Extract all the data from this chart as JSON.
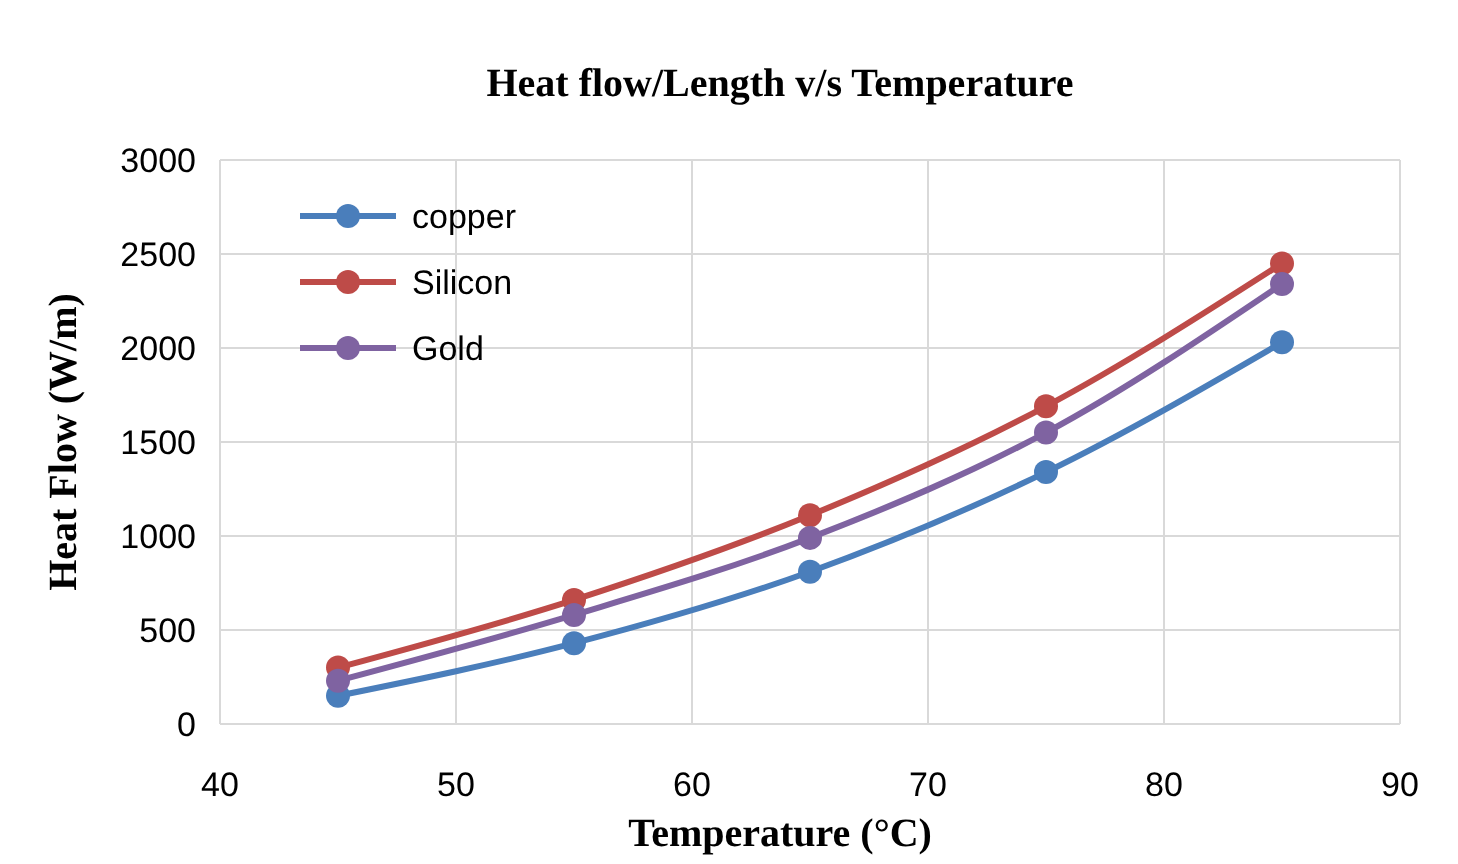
{
  "chart_data": {
    "type": "line",
    "title": "Heat flow/Length v/s Temperature",
    "xlabel": "Temperature (°C)",
    "ylabel": "Heat Flow (W/m)",
    "x": [
      45,
      55,
      65,
      75,
      85
    ],
    "series": [
      {
        "name": "copper",
        "color": "#4a7ebb",
        "values": [
          150,
          430,
          810,
          1340,
          2030
        ]
      },
      {
        "name": "Silicon",
        "color": "#be4b48",
        "values": [
          300,
          660,
          1110,
          1690,
          2450
        ]
      },
      {
        "name": "Gold",
        "color": "#7f63a1",
        "values": [
          230,
          580,
          990,
          1550,
          2340
        ]
      }
    ],
    "xlim": [
      40,
      90
    ],
    "xticks": [
      40,
      50,
      60,
      70,
      80,
      90
    ],
    "ylim": [
      0,
      3000
    ],
    "yticks": [
      0,
      500,
      1000,
      1500,
      2000,
      2500,
      3000
    ],
    "grid": true,
    "legend": "top left",
    "marker": "circle",
    "line_style": "solid"
  }
}
